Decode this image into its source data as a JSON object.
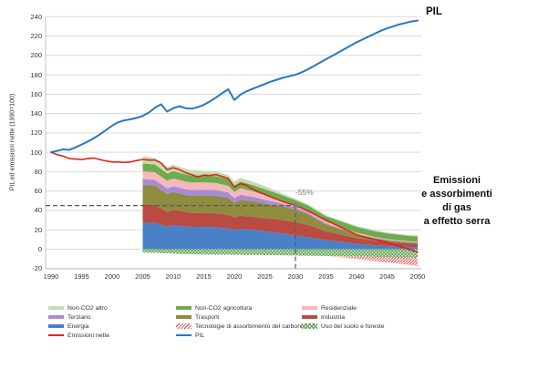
{
  "colors": {
    "pil_line": "#2779bf",
    "net_line": "#e32219",
    "grid": "#d9d9d9",
    "axis": "#bfbfbf",
    "annotation_gray": "#808080",
    "dashed": "#595959",
    "hatch_green": "#4e9a3c",
    "hatch_red": "#e03030"
  },
  "chart_data": {
    "type": "area",
    "title": "",
    "ylabel": "PIL ed emissioni nette (1990=100)",
    "xlabel": "",
    "xlim": [
      1990,
      2050
    ],
    "ylim": [
      -20,
      240
    ],
    "x_ticks": [
      1990,
      1995,
      2000,
      2005,
      2010,
      2015,
      2020,
      2025,
      2030,
      2035,
      2040,
      2045,
      2050
    ],
    "y_ticks": [
      -20,
      0,
      20,
      40,
      60,
      80,
      100,
      120,
      140,
      160,
      180,
      200,
      220,
      240
    ],
    "grid": "horizontal",
    "legend_position": "bottom",
    "annotations": {
      "minus55": {
        "label": "-55%",
        "x": 2030,
        "y": 45
      },
      "pil_label": "PIL",
      "right_label_lines": [
        "Emissioni",
        "e assorbimenti",
        "di gas",
        "a effetto serra"
      ]
    },
    "stack_years": [
      2005,
      2007,
      2009,
      2010,
      2012,
      2013,
      2015,
      2017,
      2019,
      2020,
      2021,
      2023,
      2025,
      2027,
      2030,
      2032,
      2035,
      2037,
      2040,
      2043,
      2045,
      2048,
      2050
    ],
    "stack_series": [
      {
        "name": "Energia",
        "color": "#4a80c6",
        "values": [
          27.5,
          27,
          23.5,
          24.5,
          23.5,
          23,
          23,
          22.5,
          21.5,
          19.5,
          21,
          20,
          18.5,
          17,
          14,
          12.5,
          9.5,
          8,
          5.5,
          4,
          3.2,
          2.5,
          2.2
        ]
      },
      {
        "name": "Industria",
        "color": "#b94b42",
        "values": [
          19,
          18.5,
          15,
          16,
          15,
          14.5,
          14.5,
          14.5,
          14,
          13,
          13.5,
          13.5,
          13.5,
          13.8,
          14,
          12.5,
          9,
          7.8,
          6,
          4.8,
          4.2,
          3.6,
          3.3
        ]
      },
      {
        "name": "Trasporti",
        "color": "#8f8c3f",
        "values": [
          20,
          20,
          18.5,
          18.5,
          17.5,
          17.5,
          18,
          18,
          17.5,
          15,
          16.5,
          16,
          15,
          14.5,
          13,
          11,
          7,
          5.5,
          3.5,
          2.3,
          1.8,
          1.3,
          1.1
        ]
      },
      {
        "name": "Terziario",
        "color": "#a98bd3",
        "values": [
          6,
          6,
          5.8,
          6,
          6,
          6,
          6,
          6,
          5.5,
          5,
          5.2,
          4.5,
          4,
          3,
          2,
          1.8,
          1.2,
          1,
          0.8,
          0.6,
          0.5,
          0.4,
          0.4
        ]
      },
      {
        "name": "Residenziale",
        "color": "#f5b8bc",
        "values": [
          8,
          8,
          7.8,
          8,
          7.8,
          7.8,
          7.5,
          7.3,
          7,
          6.5,
          6.8,
          5.8,
          5,
          3.8,
          2.5,
          2.2,
          1.8,
          1.5,
          1.2,
          0.9,
          0.8,
          0.7,
          0.6
        ]
      },
      {
        "name": "Non-CO2 agricoltura",
        "color": "#6faa4c",
        "values": [
          8,
          7.8,
          7.6,
          7.5,
          7.4,
          7.3,
          7,
          7,
          6.9,
          6.8,
          6.8,
          6.4,
          6,
          5.5,
          5,
          5.2,
          5.5,
          5.8,
          6,
          5.9,
          5.8,
          5.6,
          5.5
        ]
      },
      {
        "name": "Non-CO2 altro",
        "color": "#c3ddb0",
        "values": [
          7.5,
          7,
          6.8,
          6.5,
          6,
          5.5,
          5,
          4.8,
          4.3,
          4,
          4,
          3.5,
          3,
          2.2,
          1.5,
          1.4,
          1.2,
          1.1,
          1,
          1,
          1,
          1,
          1
        ]
      }
    ],
    "stack_series_negative": [
      {
        "name": "Uso del suolo e foreste",
        "hatch": "green",
        "values": [
          -3.5,
          -3.8,
          -4.2,
          -4.5,
          -5,
          -5.2,
          -5.5,
          -5.6,
          -5.7,
          -5.8,
          -5.8,
          -5.9,
          -6,
          -6.2,
          -6.5,
          -6.7,
          -7,
          -7.2,
          -7.5,
          -7.9,
          -8.2,
          -8.6,
          -9
        ]
      },
      {
        "name": "Tecnologie di assorbimento del carbonio",
        "hatch": "red",
        "values": [
          0,
          0,
          0,
          0,
          0,
          0,
          0,
          0,
          0,
          0,
          0,
          0,
          0,
          0,
          0,
          0,
          0,
          -0.8,
          -2.5,
          -4.5,
          -5.5,
          -7,
          -8.5
        ]
      }
    ],
    "lines": [
      {
        "name": "Emissioni nette",
        "color": "#e32219",
        "width": 1.6,
        "points": [
          [
            1990,
            100
          ],
          [
            1991,
            97.5
          ],
          [
            1992,
            96
          ],
          [
            1993,
            93.5
          ],
          [
            1994,
            93
          ],
          [
            1995,
            92.5
          ],
          [
            1996,
            93.5
          ],
          [
            1997,
            94
          ],
          [
            1998,
            92.5
          ],
          [
            1999,
            91
          ],
          [
            2000,
            90
          ],
          [
            2001,
            90
          ],
          [
            2002,
            89.5
          ],
          [
            2003,
            90
          ],
          [
            2004,
            91.5
          ],
          [
            2005,
            92.5
          ],
          [
            2006,
            92
          ],
          [
            2007,
            92
          ],
          [
            2008,
            89
          ],
          [
            2009,
            82
          ],
          [
            2010,
            84
          ],
          [
            2011,
            82
          ],
          [
            2012,
            79
          ],
          [
            2013,
            77
          ],
          [
            2014,
            74.5
          ],
          [
            2015,
            76.5
          ],
          [
            2016,
            76
          ],
          [
            2017,
            77
          ],
          [
            2018,
            75
          ],
          [
            2019,
            73
          ],
          [
            2020,
            64
          ],
          [
            2021,
            67.5
          ],
          [
            2022,
            66
          ],
          [
            2023,
            62
          ],
          [
            2024,
            59
          ],
          [
            2025,
            56.5
          ],
          [
            2026,
            54
          ],
          [
            2027,
            51.5
          ],
          [
            2028,
            49
          ],
          [
            2029,
            47
          ],
          [
            2030,
            45
          ],
          [
            2031,
            42.5
          ],
          [
            2032,
            39.5
          ],
          [
            2033,
            36.5
          ],
          [
            2034,
            33
          ],
          [
            2035,
            30
          ],
          [
            2036,
            27
          ],
          [
            2037,
            24
          ],
          [
            2038,
            21
          ],
          [
            2039,
            18
          ],
          [
            2040,
            15
          ],
          [
            2041,
            13
          ],
          [
            2042,
            11.5
          ],
          [
            2043,
            10
          ],
          [
            2044,
            8.5
          ],
          [
            2045,
            7
          ],
          [
            2046,
            5
          ],
          [
            2047,
            3
          ],
          [
            2048,
            1
          ],
          [
            2049,
            -1
          ],
          [
            2050,
            -3
          ]
        ]
      },
      {
        "name": "PIL",
        "color": "#2779bf",
        "width": 2,
        "points": [
          [
            1990,
            100
          ],
          [
            1991,
            101.5
          ],
          [
            1992,
            103
          ],
          [
            1993,
            102.5
          ],
          [
            1994,
            105
          ],
          [
            1995,
            108
          ],
          [
            1996,
            111
          ],
          [
            1997,
            114.5
          ],
          [
            1998,
            118.5
          ],
          [
            1999,
            123
          ],
          [
            2000,
            127.5
          ],
          [
            2001,
            131
          ],
          [
            2002,
            133
          ],
          [
            2003,
            134
          ],
          [
            2004,
            135.5
          ],
          [
            2005,
            137.5
          ],
          [
            2006,
            141
          ],
          [
            2007,
            146
          ],
          [
            2008,
            149.5
          ],
          [
            2009,
            142
          ],
          [
            2010,
            145.5
          ],
          [
            2011,
            147.5
          ],
          [
            2012,
            145.5
          ],
          [
            2013,
            145
          ],
          [
            2014,
            146.5
          ],
          [
            2015,
            149
          ],
          [
            2016,
            152.5
          ],
          [
            2017,
            156.5
          ],
          [
            2018,
            161
          ],
          [
            2019,
            165
          ],
          [
            2020,
            154
          ],
          [
            2021,
            159.5
          ],
          [
            2022,
            163
          ],
          [
            2023,
            165.5
          ],
          [
            2024,
            168
          ],
          [
            2025,
            170.5
          ],
          [
            2026,
            173
          ],
          [
            2027,
            175
          ],
          [
            2028,
            177
          ],
          [
            2029,
            178.5
          ],
          [
            2030,
            180
          ],
          [
            2031,
            182.5
          ],
          [
            2032,
            185.5
          ],
          [
            2033,
            189
          ],
          [
            2034,
            192.5
          ],
          [
            2035,
            196
          ],
          [
            2036,
            199.5
          ],
          [
            2037,
            203
          ],
          [
            2038,
            206.5
          ],
          [
            2039,
            210
          ],
          [
            2040,
            213.5
          ],
          [
            2041,
            216.5
          ],
          [
            2042,
            219.5
          ],
          [
            2043,
            222.5
          ],
          [
            2044,
            225.5
          ],
          [
            2045,
            228
          ],
          [
            2046,
            230
          ],
          [
            2047,
            232
          ],
          [
            2048,
            233.5
          ],
          [
            2049,
            235
          ],
          [
            2050,
            236
          ]
        ]
      }
    ]
  },
  "legend": {
    "columns": [
      [
        {
          "label": "Non-CO2 altro",
          "swatch": "area",
          "color": "#c3ddb0"
        },
        {
          "label": "Terziario",
          "swatch": "area",
          "color": "#a98bd3"
        },
        {
          "label": "Energia",
          "swatch": "area",
          "color": "#4a80c6"
        },
        {
          "label": "Emissioni nette",
          "swatch": "line",
          "color": "#e32219"
        }
      ],
      [
        {
          "label": "Non-CO2 agricoltura",
          "swatch": "area",
          "color": "#6faa4c"
        },
        {
          "label": "Trasporti",
          "swatch": "area",
          "color": "#8f8c3f"
        },
        {
          "label": "Tecnologie di assorbimento del carbonio",
          "swatch": "hatch-red",
          "color": "#e03030"
        },
        {
          "label": "PIL",
          "swatch": "line",
          "color": "#2779bf"
        }
      ],
      [
        {
          "label": "Residenziale",
          "swatch": "area",
          "color": "#f5b8bc"
        },
        {
          "label": "Industria",
          "swatch": "area",
          "color": "#b94b42"
        },
        {
          "label": "Uso del suolo e foreste",
          "swatch": "hatch-green",
          "color": "#4e9a3c"
        }
      ]
    ]
  }
}
